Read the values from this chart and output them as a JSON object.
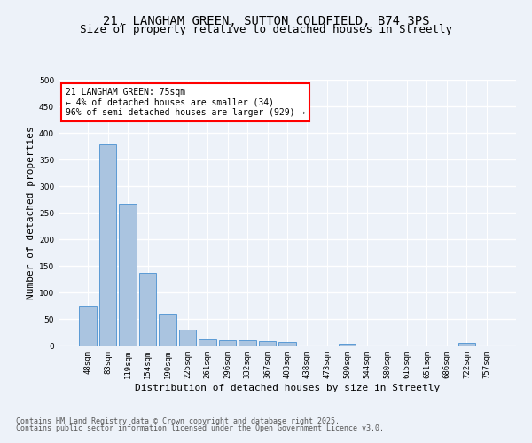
{
  "title_line1": "21, LANGHAM GREEN, SUTTON COLDFIELD, B74 3PS",
  "title_line2": "Size of property relative to detached houses in Streetly",
  "xlabel": "Distribution of detached houses by size in Streetly",
  "ylabel": "Number of detached properties",
  "footer_line1": "Contains HM Land Registry data © Crown copyright and database right 2025.",
  "footer_line2": "Contains public sector information licensed under the Open Government Licence v3.0.",
  "annotation_title": "21 LANGHAM GREEN: 75sqm",
  "annotation_line1": "← 4% of detached houses are smaller (34)",
  "annotation_line2": "96% of semi-detached houses are larger (929) →",
  "bar_labels": [
    "48sqm",
    "83sqm",
    "119sqm",
    "154sqm",
    "190sqm",
    "225sqm",
    "261sqm",
    "296sqm",
    "332sqm",
    "367sqm",
    "403sqm",
    "438sqm",
    "473sqm",
    "509sqm",
    "544sqm",
    "580sqm",
    "615sqm",
    "651sqm",
    "686sqm",
    "722sqm",
    "757sqm"
  ],
  "bar_values": [
    75,
    378,
    267,
    136,
    60,
    30,
    11,
    10,
    10,
    9,
    6,
    0,
    0,
    4,
    0,
    0,
    0,
    0,
    0,
    5,
    0
  ],
  "bar_color": "#aac4e0",
  "bar_edge_color": "#5b9bd5",
  "ylim": [
    0,
    500
  ],
  "yticks": [
    0,
    50,
    100,
    150,
    200,
    250,
    300,
    350,
    400,
    450,
    500
  ],
  "bg_color": "#edf2f9",
  "plot_bg_color": "#edf2f9",
  "grid_color": "#ffffff",
  "title_fontsize": 10,
  "subtitle_fontsize": 9,
  "tick_fontsize": 6.5,
  "ylabel_fontsize": 8,
  "xlabel_fontsize": 8,
  "annotation_fontsize": 7,
  "footer_fontsize": 6
}
